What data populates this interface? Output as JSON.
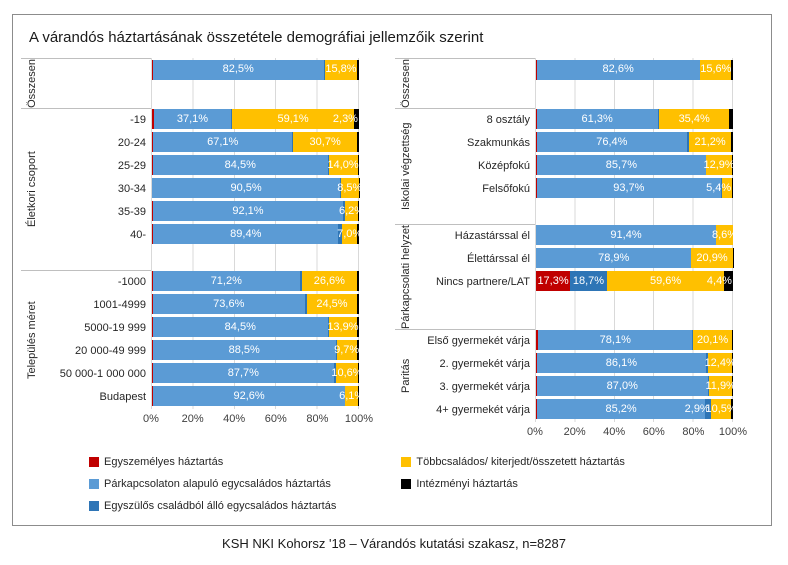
{
  "title": "A várandós háztartásának összetétele demográfiai jellemzőik szerint",
  "footer": "KSH NKI Kohorsz '18 – Várandós kutatási szakasz, n=8287",
  "colors": {
    "egyszemelyes": "#C00000",
    "parkapcsolaton": "#5B9BD5",
    "egyszulos": "#2E75B6",
    "tobbcsalados": "#FFC000",
    "intezmenyi": "#000000",
    "gridline": "#D9D9D9",
    "separator": "#BFBFBF",
    "frame_border": "#8C8C8C"
  },
  "axis_ticks": [
    "0%",
    "20%",
    "40%",
    "60%",
    "80%",
    "100%"
  ],
  "legend": {
    "left_column": [
      0,
      1,
      2
    ],
    "right_column": [
      3,
      4
    ]
  },
  "chart_data": [
    {
      "type": "bar",
      "variant": "horizontal-stacked",
      "xlim": [
        0,
        100
      ],
      "series": [
        {
          "name": "Egyszemélyes háztartás",
          "color": "#C00000"
        },
        {
          "name": "Párkapcsolaton alapuló egycsaládos háztartás",
          "color": "#5B9BD5"
        },
        {
          "name": "Egyszülős családból álló egycsaládos háztartás",
          "color": "#2E75B6"
        },
        {
          "name": "Többcsaládos/ kiterjedt/összetett háztartás",
          "color": "#FFC000"
        },
        {
          "name": "Intézményi háztartás",
          "color": "#000000"
        }
      ],
      "groups": [
        {
          "label": "Összesen",
          "rows": [
            {
              "label": "",
              "values": [
                0.4,
                82.5,
                0.5,
                15.8,
                0.8
              ],
              "labels": [
                "",
                "82,5%",
                "",
                "15,8%",
                ""
              ]
            },
            {
              "blank": true
            }
          ]
        },
        {
          "label": "Életkori csoport",
          "rows": [
            {
              "label": "-19",
              "values": [
                1.0,
                37.1,
                0.5,
                59.1,
                2.3
              ],
              "labels": [
                "",
                "37,1%",
                "",
                "59,1%",
                "2,3%"
              ]
            },
            {
              "label": "20-24",
              "values": [
                0.6,
                67.1,
                0.6,
                30.7,
                1.0
              ],
              "labels": [
                "",
                "67,1%",
                "",
                "30,7%",
                ""
              ]
            },
            {
              "label": "25-29",
              "values": [
                0.4,
                84.5,
                0.4,
                14.0,
                0.7
              ],
              "labels": [
                "",
                "84,5%",
                "",
                "14,0%",
                ""
              ]
            },
            {
              "label": "30-34",
              "values": [
                0.2,
                90.5,
                0.6,
                8.5,
                0.2
              ],
              "labels": [
                "",
                "90,5%",
                "",
                "8,5%",
                ""
              ]
            },
            {
              "label": "35-39",
              "values": [
                0.3,
                92.1,
                0.9,
                6.2,
                0.5
              ],
              "labels": [
                "",
                "92,1%",
                "",
                "6,2%",
                ""
              ]
            },
            {
              "label": "40-",
              "values": [
                0.6,
                89.4,
                2.0,
                7.0,
                1.0
              ],
              "labels": [
                "",
                "89,4%",
                "",
                "7,0%",
                ""
              ]
            },
            {
              "blank": true
            }
          ]
        },
        {
          "label": "Település méret",
          "rows": [
            {
              "label": "-1000",
              "values": [
                0.3,
                71.2,
                0.9,
                26.6,
                1.0
              ],
              "labels": [
                "",
                "71,2%",
                "",
                "26,6%",
                ""
              ]
            },
            {
              "label": "1001-4999",
              "values": [
                0.3,
                73.6,
                0.8,
                24.5,
                0.8
              ],
              "labels": [
                "",
                "73,6%",
                "",
                "24,5%",
                ""
              ]
            },
            {
              "label": "5000-19 999",
              "values": [
                0.4,
                84.5,
                0.4,
                13.9,
                0.8
              ],
              "labels": [
                "",
                "84,5%",
                "",
                "13,9%",
                ""
              ]
            },
            {
              "label": "20 000-49 999",
              "values": [
                0.3,
                88.5,
                0.4,
                9.7,
                1.1
              ],
              "labels": [
                "",
                "88,5%",
                "",
                "9,7%",
                ""
              ]
            },
            {
              "label": "50 000-1 000 000",
              "values": [
                0.3,
                87.7,
                0.9,
                10.6,
                0.5
              ],
              "labels": [
                "",
                "87,7%",
                "",
                "10,6%",
                ""
              ]
            },
            {
              "label": "Budapest",
              "values": [
                0.6,
                92.6,
                0.2,
                6.1,
                0.5
              ],
              "labels": [
                "",
                "92,6%",
                "",
                "6,1%",
                ""
              ]
            }
          ]
        }
      ]
    },
    {
      "type": "bar",
      "variant": "horizontal-stacked",
      "xlim": [
        0,
        100
      ],
      "series": [
        {
          "name": "Egyszemélyes háztartás",
          "color": "#C00000"
        },
        {
          "name": "Párkapcsolaton alapuló egycsaládos háztartás",
          "color": "#5B9BD5"
        },
        {
          "name": "Egyszülős családból álló egycsaládos háztartás",
          "color": "#2E75B6"
        },
        {
          "name": "Többcsaládos/ kiterjedt/összetett háztartás",
          "color": "#FFC000"
        },
        {
          "name": "Intézményi háztartás",
          "color": "#000000"
        }
      ],
      "groups": [
        {
          "label": "Összesen",
          "rows": [
            {
              "label": "",
              "values": [
                0.4,
                82.6,
                0.5,
                15.6,
                0.9
              ],
              "labels": [
                "",
                "82,6%",
                "",
                "15,6%",
                ""
              ]
            },
            {
              "blank": true
            }
          ]
        },
        {
          "label": "Iskolai végzettség",
          "rows": [
            {
              "label": "8 osztály",
              "values": [
                0.4,
                61.3,
                0.9,
                35.4,
                2.0
              ],
              "labels": [
                "",
                "61,3%",
                "",
                "35,4%",
                ""
              ]
            },
            {
              "label": "Szakmunkás",
              "values": [
                0.3,
                76.4,
                1.1,
                21.2,
                1.0
              ],
              "labels": [
                "",
                "76,4%",
                "",
                "21,2%",
                ""
              ]
            },
            {
              "label": "Középfokú",
              "values": [
                0.5,
                85.7,
                0.3,
                12.9,
                0.6
              ],
              "labels": [
                "",
                "85,7%",
                "",
                "12,9%",
                ""
              ]
            },
            {
              "label": "Felsőfokú",
              "values": [
                0.3,
                93.7,
                0.2,
                5.4,
                0.4
              ],
              "labels": [
                "",
                "93,7%",
                "",
                "5,4%",
                ""
              ]
            },
            {
              "blank": true
            }
          ]
        },
        {
          "label": "Párkapcsolati helyzet",
          "rows": [
            {
              "label": "Házastárssal él",
              "values": [
                0,
                91.4,
                0,
                8.6,
                0
              ],
              "labels": [
                "",
                "91,4%",
                "",
                "8,6%",
                ""
              ]
            },
            {
              "label": "Élettárssal él",
              "values": [
                0,
                78.9,
                0,
                20.9,
                0.2
              ],
              "labels": [
                "",
                "78,9%",
                "",
                "20,9%",
                ""
              ]
            },
            {
              "label": "Nincs partnere/LAT",
              "values": [
                17.3,
                0,
                18.7,
                59.6,
                4.4
              ],
              "labels": [
                "17,3%",
                "",
                "18,7%",
                "59,6%",
                "4,4%"
              ]
            },
            {
              "blank": true
            }
          ]
        },
        {
          "label": "Paritás",
          "rows": [
            {
              "label": "Első gyermekét várja",
              "values": [
                1.2,
                78.1,
                0.3,
                20.1,
                0.3
              ],
              "labels": [
                "",
                "78,1%",
                "",
                "20,1%",
                ""
              ]
            },
            {
              "label": "2. gyermekét várja",
              "values": [
                0.3,
                86.1,
                0.9,
                12.4,
                0.3
              ],
              "labels": [
                "",
                "86,1%",
                "",
                "12,4%",
                ""
              ]
            },
            {
              "label": "3. gyermekét várja",
              "values": [
                0.3,
                87.0,
                0.5,
                11.9,
                0.3
              ],
              "labels": [
                "",
                "87,0%",
                "",
                "11,9%",
                ""
              ]
            },
            {
              "label": "4+ gyermekét várja",
              "values": [
                0.6,
                85.2,
                2.9,
                10.5,
                0.8
              ],
              "labels": [
                "",
                "85,2%",
                "2,9%",
                "10,5%",
                ""
              ]
            }
          ]
        }
      ]
    }
  ]
}
